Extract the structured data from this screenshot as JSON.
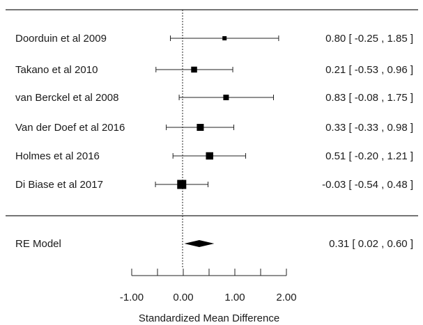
{
  "chart_data": {
    "type": "forest",
    "xlabel": "Standardized Mean Difference",
    "xlim": [
      -1.0,
      2.0
    ],
    "xticks": [
      -1.0,
      0.0,
      1.0,
      2.0
    ],
    "xtick_labels": [
      "-1.00",
      "0.00",
      "1.00",
      "2.00"
    ],
    "reference_line": 0,
    "studies": [
      {
        "label": "Doorduin et al 2009",
        "estimate": 0.8,
        "ci_low": -0.25,
        "ci_high": 1.85,
        "weight": 0.3,
        "ci_text": "0.80 [ -0.25 , 1.85 ]"
      },
      {
        "label": "Takano et al 2010",
        "estimate": 0.21,
        "ci_low": -0.53,
        "ci_high": 0.96,
        "weight": 0.55,
        "ci_text": "0.21 [ -0.53 , 0.96 ]"
      },
      {
        "label": "van Berckel et al 2008",
        "estimate": 0.83,
        "ci_low": -0.08,
        "ci_high": 1.75,
        "weight": 0.5,
        "ci_text": "0.83 [ -0.08 , 1.75 ]"
      },
      {
        "label": "Van der Doef et al 2016",
        "estimate": 0.33,
        "ci_low": -0.33,
        "ci_high": 0.98,
        "weight": 0.7,
        "ci_text": "0.33 [ -0.33 , 0.98 ]"
      },
      {
        "label": "Holmes et al 2016",
        "estimate": 0.51,
        "ci_low": -0.2,
        "ci_high": 1.21,
        "weight": 0.75,
        "ci_text": "0.51 [ -0.20 , 1.21 ]"
      },
      {
        "label": "Di Biase et al 2017",
        "estimate": -0.03,
        "ci_low": -0.54,
        "ci_high": 0.48,
        "weight": 1.0,
        "ci_text": "-0.03 [ -0.54 , 0.48 ]"
      }
    ],
    "summary": {
      "label": "RE Model",
      "estimate": 0.31,
      "ci_low": 0.02,
      "ci_high": 0.6,
      "ci_text": "0.31 [ 0.02 , 0.60 ]"
    }
  }
}
